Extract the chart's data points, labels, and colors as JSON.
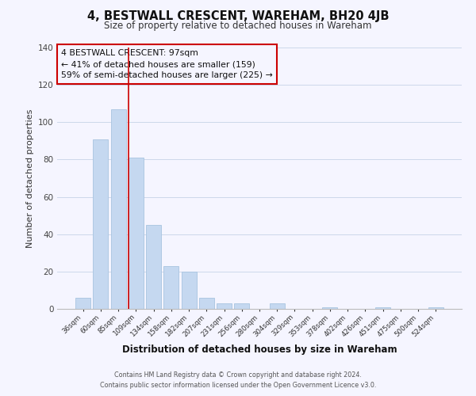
{
  "title": "4, BESTWALL CRESCENT, WAREHAM, BH20 4JB",
  "subtitle": "Size of property relative to detached houses in Wareham",
  "xlabel": "Distribution of detached houses by size in Wareham",
  "ylabel": "Number of detached properties",
  "bar_color": "#c5d8f0",
  "bar_edge_color": "#a8c4e0",
  "categories": [
    "36sqm",
    "60sqm",
    "85sqm",
    "109sqm",
    "134sqm",
    "158sqm",
    "182sqm",
    "207sqm",
    "231sqm",
    "256sqm",
    "280sqm",
    "304sqm",
    "329sqm",
    "353sqm",
    "378sqm",
    "402sqm",
    "426sqm",
    "451sqm",
    "475sqm",
    "500sqm",
    "524sqm"
  ],
  "values": [
    6,
    91,
    107,
    81,
    45,
    23,
    20,
    6,
    3,
    3,
    0,
    3,
    0,
    0,
    1,
    0,
    0,
    1,
    0,
    0,
    1
  ],
  "ylim": [
    0,
    140
  ],
  "yticks": [
    0,
    20,
    40,
    60,
    80,
    100,
    120,
    140
  ],
  "marker_line_color": "#cc0000",
  "marker_bar_index": 3,
  "annotation_title": "4 BESTWALL CRESCENT: 97sqm",
  "annotation_line1": "← 41% of detached houses are smaller (159)",
  "annotation_line2": "59% of semi-detached houses are larger (225) →",
  "annotation_box_edge": "#cc0000",
  "footer_line1": "Contains HM Land Registry data © Crown copyright and database right 2024.",
  "footer_line2": "Contains public sector information licensed under the Open Government Licence v3.0.",
  "background_color": "#f5f5ff",
  "grid_color": "#ccd8ea"
}
